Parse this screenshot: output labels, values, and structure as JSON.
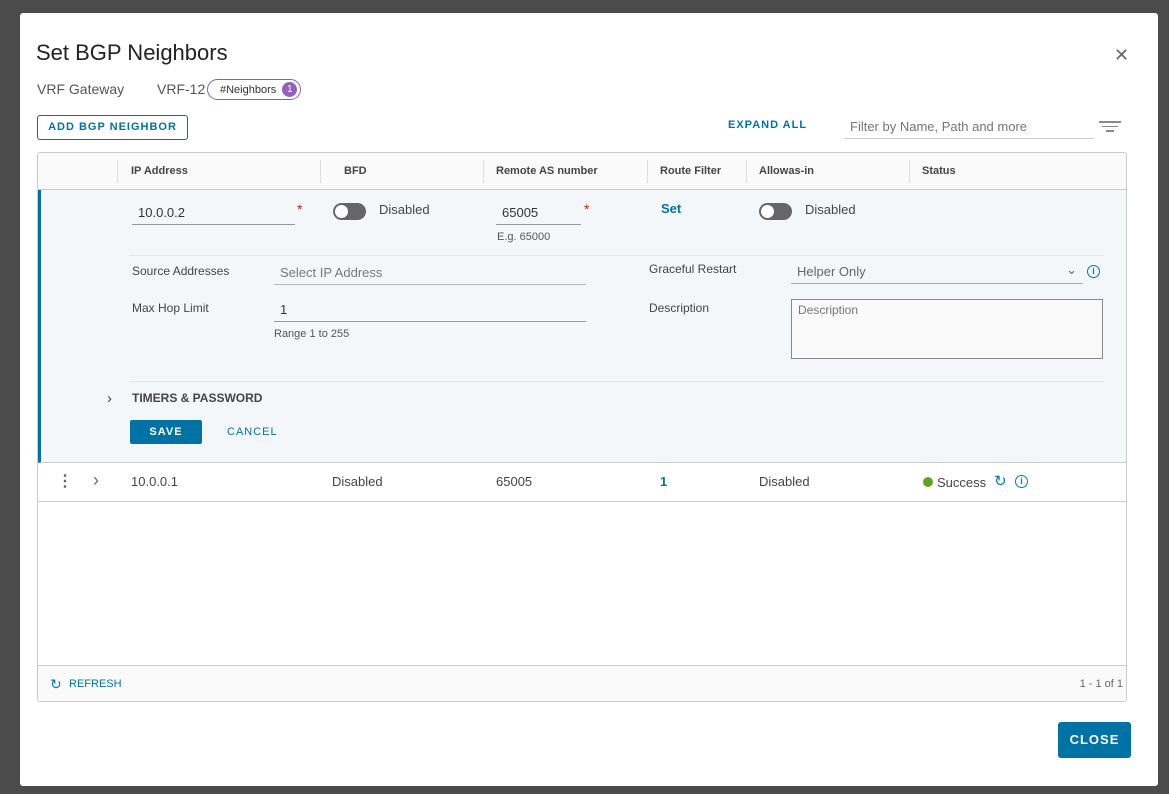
{
  "dialog": {
    "title": "Set BGP Neighbors",
    "close_label": "CLOSE"
  },
  "context": {
    "type": "VRF Gateway",
    "name": "VRF-12",
    "badge_label": "#Neighbors",
    "badge_count": "1"
  },
  "toolbar": {
    "add_label": "ADD BGP NEIGHBOR",
    "expand_all": "EXPAND ALL",
    "filter_placeholder": "Filter by Name, Path and more"
  },
  "columns": [
    "IP Address",
    "BFD",
    "Remote AS number",
    "Route Filter",
    "Allowas-in",
    "Status"
  ],
  "edit": {
    "ip": "10.0.0.2",
    "bfd": "Disabled",
    "remote_as": "65005",
    "remote_as_hint": "E.g. 65000",
    "route_filter": "Set",
    "allowas": "Disabled",
    "source_label": "Source Addresses",
    "source_placeholder": "Select IP Address",
    "hop_label": "Max Hop Limit",
    "hop_value": "1",
    "hop_hint": "Range 1 to 255",
    "graceful_label": "Graceful Restart",
    "graceful_value": "Helper Only",
    "desc_label": "Description",
    "desc_placeholder": "Description",
    "timers_label": "TIMERS & PASSWORD",
    "save": "SAVE",
    "cancel": "CANCEL"
  },
  "rows": [
    {
      "ip": "10.0.0.1",
      "bfd": "Disabled",
      "remote_as": "65005",
      "route_filter": "1",
      "allowas": "Disabled",
      "status": "Success",
      "status_color": "#62a420"
    }
  ],
  "footer": {
    "refresh": "REFRESH",
    "pagination": "1 - 1 of 1"
  }
}
